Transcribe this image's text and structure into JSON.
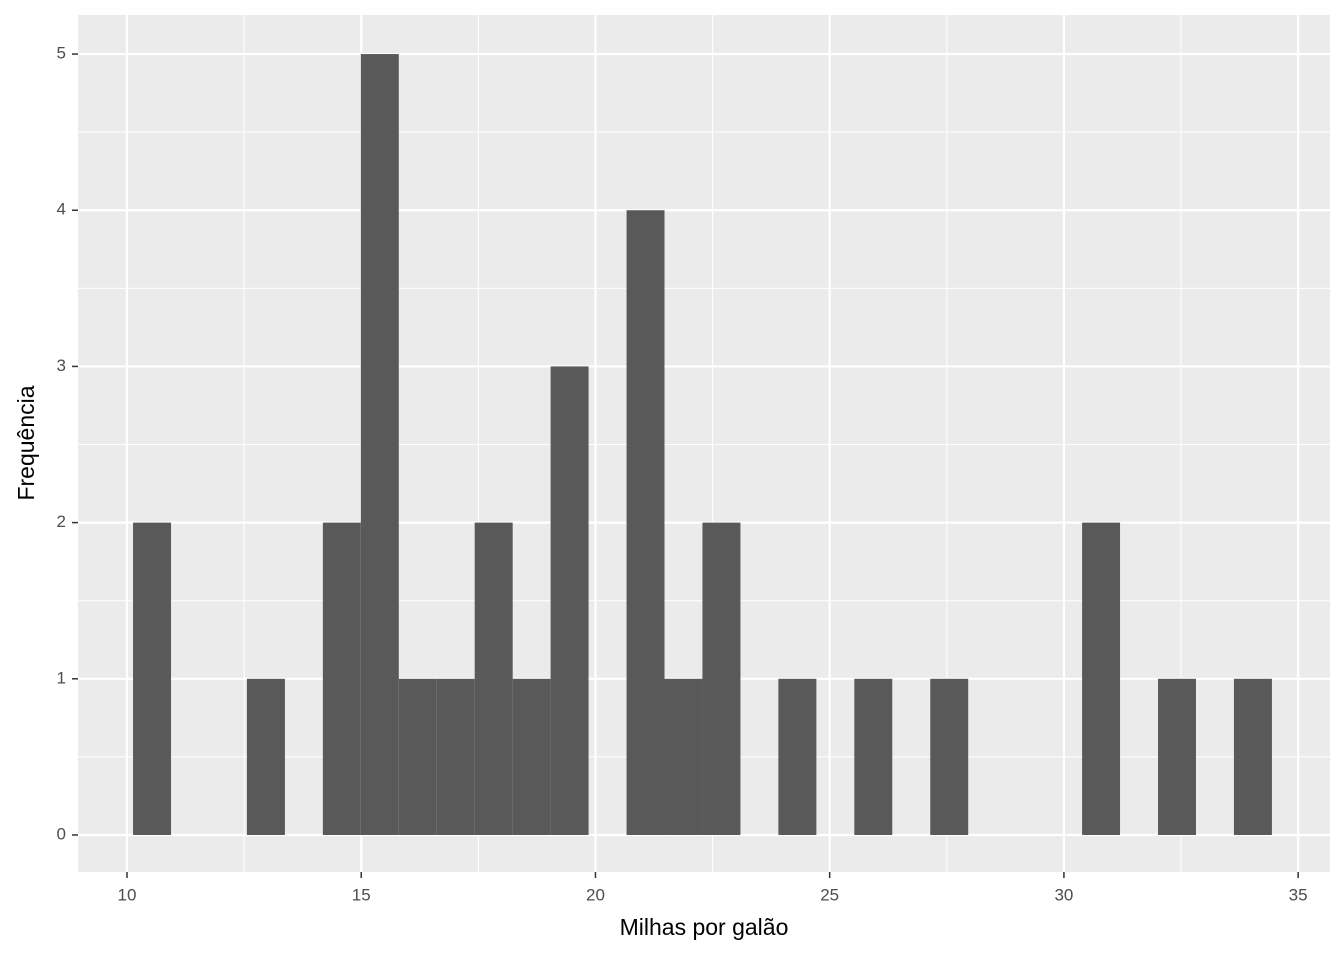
{
  "chart_data": {
    "type": "histogram",
    "x_label": "Milhas por galão",
    "y_label": "Frequência",
    "bins": [
      10.129,
      10.94,
      11.75,
      12.56,
      13.371,
      14.181,
      14.991,
      15.802,
      16.612,
      17.422,
      18.233,
      19.043,
      19.853,
      20.664,
      21.474,
      22.284,
      23.095,
      23.905,
      24.716,
      25.526,
      26.336,
      27.147,
      27.957,
      28.767,
      29.578,
      30.388,
      31.198,
      32.009,
      32.819,
      33.629,
      34.44
    ],
    "values": [
      2,
      0,
      0,
      1,
      0,
      2,
      5,
      1,
      1,
      2,
      1,
      3,
      0,
      4,
      1,
      2,
      0,
      1,
      0,
      1,
      0,
      1,
      0,
      0,
      0,
      2,
      0,
      1,
      0,
      1
    ],
    "color": "#595959",
    "xlim": [
      8.954,
      35.68
    ],
    "ylim": [
      -0.237,
      5.25
    ],
    "xticks": [
      10,
      15,
      20,
      25,
      30,
      35
    ],
    "yticks": [
      0,
      1,
      2,
      3,
      4,
      5
    ],
    "grid": true
  }
}
